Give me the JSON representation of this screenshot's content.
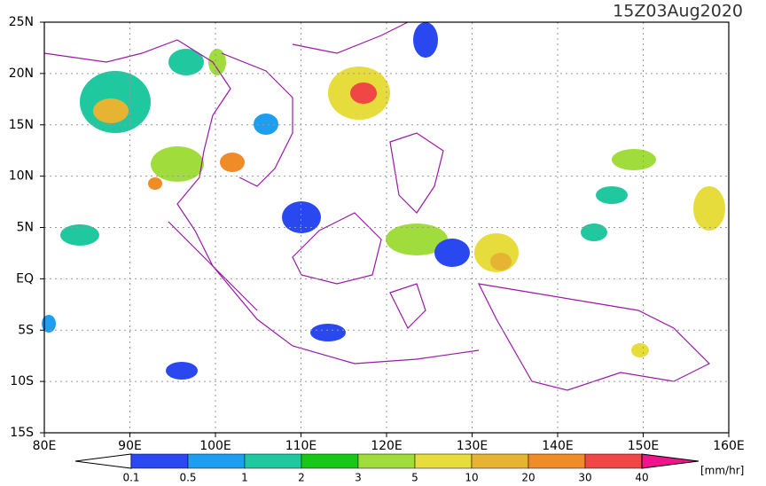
{
  "title": "15Z03Aug2020",
  "map": {
    "lon_labels": [
      "80E",
      "90E",
      "100E",
      "110E",
      "120E",
      "130E",
      "140E",
      "150E",
      "160E"
    ],
    "lat_labels": [
      "25N",
      "20N",
      "15N",
      "10N",
      "5N",
      "EQ",
      "5S",
      "10S",
      "15S"
    ]
  },
  "colorbar": {
    "unit": "[mm/hr]",
    "levels": [
      0.1,
      0.5,
      1,
      2,
      3,
      5,
      10,
      20,
      30,
      40
    ],
    "colors": [
      "#ffffff",
      "#2a48f0",
      "#1e9ef0",
      "#20c8a0",
      "#18c818",
      "#a0dc3c",
      "#e6dc3c",
      "#e6b432",
      "#f08c28",
      "#f04646",
      "#f0148c"
    ]
  }
}
